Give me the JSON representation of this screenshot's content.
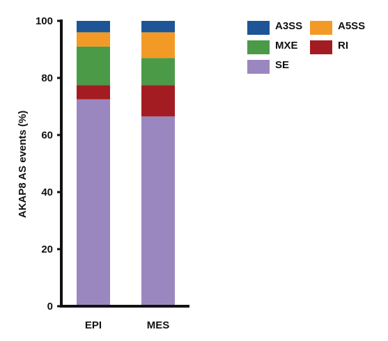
{
  "chart_data": {
    "type": "bar",
    "stacked": true,
    "categories": [
      "EPI",
      "MES"
    ],
    "ylabel": "AKAP8 AS events (%)",
    "ylim": [
      0,
      100
    ],
    "yticks": [
      0,
      20,
      40,
      60,
      80,
      100
    ],
    "legend_position": "top-right",
    "grid": false,
    "series": [
      {
        "name": "SE",
        "color": "#9b87bf",
        "values": [
          72.5,
          66.5
        ]
      },
      {
        "name": "RI",
        "color": "#a31c22",
        "values": [
          5.0,
          11.0
        ]
      },
      {
        "name": "MXE",
        "color": "#4b9a47",
        "values": [
          13.5,
          9.5
        ]
      },
      {
        "name": "A5SS",
        "color": "#f39a26",
        "values": [
          5.0,
          9.0
        ]
      },
      {
        "name": "A3SS",
        "color": "#1d5596",
        "values": [
          4.0,
          4.0
        ]
      }
    ]
  }
}
